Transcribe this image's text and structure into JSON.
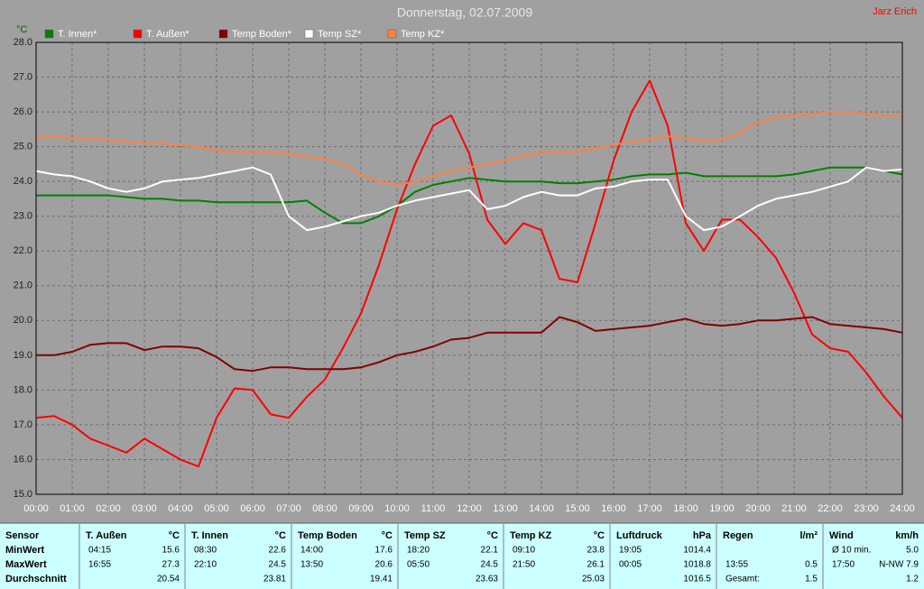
{
  "chart_data": {
    "type": "line",
    "title": "Donnerstag, 02.07.2009",
    "annotations": [
      "Jarz Erich"
    ],
    "y_label": "°C",
    "grid": true,
    "legend": "top",
    "xlim": [
      0,
      24
    ],
    "ylim": [
      15,
      28
    ],
    "xticks": [
      {
        "value": 0,
        "label": "00:00"
      },
      {
        "value": 1,
        "label": "01:00"
      },
      {
        "value": 2,
        "label": "02:00"
      },
      {
        "value": 3,
        "label": "03:00"
      },
      {
        "value": 4,
        "label": "04:00"
      },
      {
        "value": 5,
        "label": "05:00"
      },
      {
        "value": 6,
        "label": "06:00"
      },
      {
        "value": 7,
        "label": "07:00"
      },
      {
        "value": 8,
        "label": "08:00"
      },
      {
        "value": 9,
        "label": "09:00"
      },
      {
        "value": 10,
        "label": "10:00"
      },
      {
        "value": 11,
        "label": "11:00"
      },
      {
        "value": 12,
        "label": "12:00"
      },
      {
        "value": 13,
        "label": "13:00"
      },
      {
        "value": 14,
        "label": "14:00"
      },
      {
        "value": 15,
        "label": "15:00"
      },
      {
        "value": 16,
        "label": "16:00"
      },
      {
        "value": 17,
        "label": "17:00"
      },
      {
        "value": 18,
        "label": "18:00"
      },
      {
        "value": 19,
        "label": "19:00"
      },
      {
        "value": 20,
        "label": "20:00"
      },
      {
        "value": 21,
        "label": "21:00"
      },
      {
        "value": 22,
        "label": "22:00"
      },
      {
        "value": 23,
        "label": "23:00"
      },
      {
        "value": 24,
        "label": "24:00"
      }
    ],
    "yticks": [
      {
        "value": 15,
        "label": "15.0"
      },
      {
        "value": 16,
        "label": "16.0"
      },
      {
        "value": 17,
        "label": "17.0"
      },
      {
        "value": 18,
        "label": "18.0"
      },
      {
        "value": 19,
        "label": "19.0"
      },
      {
        "value": 20,
        "label": "20.0"
      },
      {
        "value": 21,
        "label": "21.0"
      },
      {
        "value": 22,
        "label": "22.0"
      },
      {
        "value": 23,
        "label": "23.0"
      },
      {
        "value": 24,
        "label": "24.0"
      },
      {
        "value": 25,
        "label": "25.0"
      },
      {
        "value": 26,
        "label": "26.0"
      },
      {
        "value": 27,
        "label": "27.0"
      },
      {
        "value": 28,
        "label": "28.0"
      }
    ],
    "x": [
      0,
      0.5,
      1,
      1.5,
      2,
      2.5,
      3,
      3.5,
      4,
      4.5,
      5,
      5.5,
      6,
      6.5,
      7,
      7.5,
      8,
      8.5,
      9,
      9.5,
      10,
      10.5,
      11,
      11.5,
      12,
      12.5,
      13,
      13.5,
      14,
      14.5,
      15,
      15.5,
      16,
      16.5,
      17,
      17.5,
      18,
      18.5,
      19,
      19.5,
      20,
      20.5,
      21,
      21.5,
      22,
      22.5,
      23,
      23.5,
      24
    ],
    "series": [
      {
        "name": "T. Innen*",
        "color": "#008000",
        "values": [
          23.6,
          23.6,
          23.6,
          23.6,
          23.6,
          23.55,
          23.5,
          23.5,
          23.45,
          23.45,
          23.4,
          23.4,
          23.4,
          23.4,
          23.4,
          23.45,
          23.1,
          22.8,
          22.8,
          23.0,
          23.3,
          23.7,
          23.9,
          24.0,
          24.1,
          24.05,
          24.0,
          24.0,
          24.0,
          23.95,
          23.95,
          24.0,
          24.05,
          24.15,
          24.2,
          24.2,
          24.25,
          24.15,
          24.15,
          24.15,
          24.15,
          24.15,
          24.2,
          24.3,
          24.4,
          24.4,
          24.4,
          24.3,
          24.2
        ]
      },
      {
        "name": "T. Außen*",
        "color": "#ff0000",
        "values": [
          17.2,
          17.25,
          17.0,
          16.6,
          16.4,
          16.2,
          16.6,
          16.3,
          16.0,
          15.8,
          17.2,
          18.05,
          18.0,
          17.3,
          17.2,
          17.8,
          18.3,
          19.2,
          20.2,
          21.6,
          23.2,
          24.5,
          25.6,
          25.9,
          24.8,
          22.9,
          22.2,
          22.8,
          22.6,
          21.2,
          21.1,
          22.8,
          24.6,
          26.0,
          26.9,
          25.6,
          22.8,
          22.0,
          22.9,
          22.9,
          22.4,
          21.8,
          20.8,
          19.6,
          19.2,
          19.1,
          18.5,
          17.8,
          17.2
        ]
      },
      {
        "name": "Temp Boden*",
        "color": "#800000",
        "values": [
          19.0,
          19.0,
          19.1,
          19.3,
          19.35,
          19.35,
          19.15,
          19.25,
          19.25,
          19.2,
          18.95,
          18.6,
          18.55,
          18.65,
          18.65,
          18.6,
          18.6,
          18.6,
          18.65,
          18.8,
          19.0,
          19.1,
          19.25,
          19.45,
          19.5,
          19.65,
          19.65,
          19.65,
          19.65,
          20.1,
          19.95,
          19.7,
          19.75,
          19.8,
          19.85,
          19.95,
          20.05,
          19.9,
          19.85,
          19.9,
          20.0,
          20.0,
          20.05,
          20.1,
          19.9,
          19.85,
          19.8,
          19.75,
          19.65
        ]
      },
      {
        "name": "Temp SZ*",
        "color": "#ffffff",
        "values": [
          24.3,
          24.2,
          24.15,
          24.0,
          23.8,
          23.7,
          23.8,
          24.0,
          24.05,
          24.1,
          24.2,
          24.3,
          24.4,
          24.2,
          23.0,
          22.6,
          22.7,
          22.85,
          23.0,
          23.1,
          23.3,
          23.45,
          23.55,
          23.65,
          23.75,
          23.2,
          23.3,
          23.55,
          23.7,
          23.6,
          23.6,
          23.8,
          23.85,
          24.0,
          24.05,
          24.05,
          23.0,
          22.6,
          22.7,
          23.0,
          23.3,
          23.5,
          23.6,
          23.7,
          23.85,
          24.0,
          24.4,
          24.3,
          24.35
        ]
      },
      {
        "name": "Temp KZ*",
        "color": "#ff8040",
        "values": [
          25.3,
          25.3,
          25.25,
          25.25,
          25.2,
          25.15,
          25.1,
          25.1,
          25.05,
          25.0,
          24.9,
          24.85,
          24.85,
          24.85,
          24.8,
          24.7,
          24.65,
          24.5,
          24.2,
          24.0,
          23.9,
          24.0,
          24.15,
          24.3,
          24.4,
          24.5,
          24.6,
          24.75,
          24.85,
          24.85,
          24.85,
          24.95,
          25.05,
          25.15,
          25.2,
          25.3,
          25.25,
          25.15,
          25.2,
          25.4,
          25.7,
          25.85,
          25.9,
          25.95,
          26.0,
          26.0,
          25.95,
          25.9,
          25.9
        ]
      }
    ]
  },
  "table": {
    "sensor_label": "Sensor",
    "columns": [
      {
        "name": "T. Außen",
        "unit": "°C"
      },
      {
        "name": "T. Innen",
        "unit": "°C"
      },
      {
        "name": "Temp Boden",
        "unit": "°C"
      },
      {
        "name": "Temp SZ",
        "unit": "°C"
      },
      {
        "name": "Temp KZ",
        "unit": "°C"
      },
      {
        "name": "Luftdruck",
        "unit": "hPa"
      },
      {
        "name": "Regen",
        "unit": "l/m²"
      },
      {
        "name": "Wind",
        "unit": "km/h"
      }
    ],
    "rows": [
      {
        "label": "MinWert",
        "cells": [
          {
            "time": "04:15",
            "value": "15.6"
          },
          {
            "time": "08:30",
            "value": "22.6"
          },
          {
            "time": "14:00",
            "value": "17.6"
          },
          {
            "time": "18:20",
            "value": "22.1"
          },
          {
            "time": "09:10",
            "value": "23.8"
          },
          {
            "time": "19:05",
            "value": "1014.4"
          },
          null,
          {
            "time": "Ø 10 min.",
            "value": "5.0"
          }
        ]
      },
      {
        "label": "MaxWert",
        "cells": [
          {
            "time": "16:55",
            "value": "27.3"
          },
          {
            "time": "22:10",
            "value": "24.5"
          },
          {
            "time": "13:50",
            "value": "20.6"
          },
          {
            "time": "05:50",
            "value": "24.5"
          },
          {
            "time": "21:50",
            "value": "26.1"
          },
          {
            "time": "00:05",
            "value": "1018.8"
          },
          {
            "time": "13:55",
            "value": "0.5"
          },
          {
            "time": "17:50",
            "value": "N-NW 7.9"
          }
        ]
      },
      {
        "label": "Durchschnitt",
        "cells": [
          {
            "value": "20.54"
          },
          {
            "value": "23.81"
          },
          {
            "value": "19.41"
          },
          {
            "value": "23.63"
          },
          {
            "value": "25.03"
          },
          {
            "value": "1016.5"
          },
          {
            "time": "Gesamt:",
            "value": "1.5"
          },
          {
            "value": "1.2"
          }
        ]
      }
    ]
  }
}
